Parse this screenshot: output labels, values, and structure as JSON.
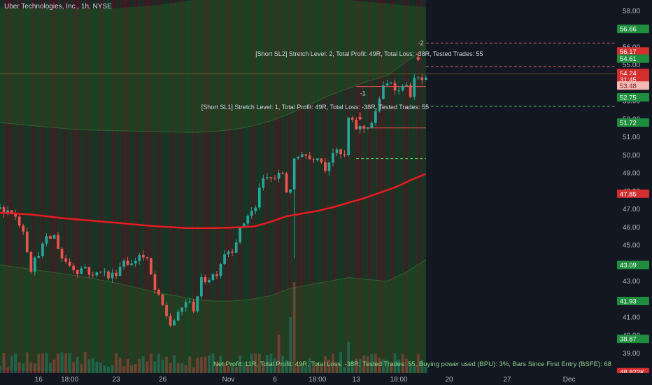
{
  "header": {
    "symbol_title": "Uber Technologies, Inc., 1h, NYSE"
  },
  "colors": {
    "background": "#131722",
    "candle_up": "#26a69a",
    "candle_down": "#ef5350",
    "band_fill": "#1f5a1f",
    "stripe_green": "#2e7d32",
    "stripe_red": "#c62828",
    "midline": "#e51c23",
    "label_green": "#1e8e3e",
    "label_red": "#d32f2f"
  },
  "chart_data": {
    "type": "candlestick",
    "symbol": "Uber Technologies, Inc.",
    "interval": "1h",
    "exchange": "NYSE",
    "y_ticks": [
      "58.00",
      "56.00",
      "55.00",
      "54.00",
      "53.00",
      "52.00",
      "51.00",
      "50.00",
      "49.00",
      "48.00",
      "47.00",
      "46.00",
      "45.00",
      "44.00",
      "43.00",
      "42.00",
      "41.00",
      "40.00",
      "39.00",
      "38.00"
    ],
    "ylim": [
      37.9,
      58.6
    ],
    "x_ticks": [
      {
        "label": "16",
        "x_bar": 10
      },
      {
        "label": "18:00",
        "x_bar": 18
      },
      {
        "label": "23",
        "x_bar": 30
      },
      {
        "label": "26",
        "x_bar": 42
      },
      {
        "label": "Nov",
        "x_bar": 59
      },
      {
        "label": "6",
        "x_bar": 71
      },
      {
        "label": "18:00",
        "x_bar": 82
      },
      {
        "label": "13",
        "x_bar": 92
      },
      {
        "label": "18:00",
        "x_bar": 103
      },
      {
        "label": "20",
        "x_bar": 116
      },
      {
        "label": "27",
        "x_bar": 131
      },
      {
        "label": "Dec",
        "x_bar": 147
      }
    ],
    "xlim_bars": [
      0,
      159
    ],
    "last_bar_index": 110,
    "price_path": [
      [
        0,
        47.0
      ],
      [
        3,
        46.9
      ],
      [
        6,
        45.9
      ],
      [
        8,
        43.7
      ],
      [
        10,
        44.6
      ],
      [
        12,
        45.3
      ],
      [
        14,
        45.5
      ],
      [
        16,
        44.3
      ],
      [
        18,
        43.9
      ],
      [
        20,
        43.6
      ],
      [
        22,
        43.8
      ],
      [
        24,
        43.2
      ],
      [
        26,
        43.7
      ],
      [
        28,
        43.2
      ],
      [
        30,
        43.5
      ],
      [
        32,
        44.2
      ],
      [
        34,
        43.9
      ],
      [
        36,
        44.5
      ],
      [
        38,
        44.1
      ],
      [
        40,
        42.5
      ],
      [
        42,
        41.6
      ],
      [
        44,
        40.6
      ],
      [
        46,
        41.1
      ],
      [
        48,
        41.9
      ],
      [
        50,
        41.5
      ],
      [
        52,
        43.0
      ],
      [
        54,
        43.2
      ],
      [
        56,
        43.5
      ],
      [
        58,
        44.6
      ],
      [
        60,
        44.8
      ],
      [
        62,
        45.8
      ],
      [
        64,
        46.7
      ],
      [
        66,
        47.0
      ],
      [
        67,
        48.3
      ],
      [
        69,
        48.7
      ],
      [
        71,
        48.7
      ],
      [
        73,
        49.0
      ],
      [
        74,
        48.0
      ],
      [
        75,
        48.2
      ],
      [
        76,
        49.6
      ],
      [
        78,
        50.2
      ],
      [
        80,
        49.8
      ],
      [
        82,
        50.0
      ],
      [
        84,
        49.3
      ],
      [
        86,
        50.2
      ],
      [
        88,
        50.0
      ],
      [
        89,
        49.9
      ],
      [
        90,
        52.0
      ],
      [
        92,
        51.5
      ],
      [
        94,
        51.5
      ],
      [
        96,
        51.8
      ],
      [
        97,
        52.3
      ],
      [
        98,
        53.2
      ],
      [
        99,
        53.7
      ],
      [
        101,
        54.1
      ],
      [
        103,
        53.5
      ],
      [
        104,
        54.0
      ],
      [
        106,
        53.4
      ],
      [
        107,
        54.1
      ],
      [
        108,
        54.2
      ],
      [
        110,
        54.1
      ]
    ],
    "big_drop_bar": {
      "index": 76,
      "high": 49.3,
      "low": 44.3
    },
    "trend_line": [
      [
        0,
        46.8
      ],
      [
        8,
        46.7
      ],
      [
        16,
        46.5
      ],
      [
        24,
        46.35
      ],
      [
        32,
        46.2
      ],
      [
        40,
        46.05
      ],
      [
        48,
        45.95
      ],
      [
        56,
        45.95
      ],
      [
        63,
        46.0
      ],
      [
        66,
        46.05
      ],
      [
        70,
        46.3
      ],
      [
        74,
        46.6
      ],
      [
        78,
        46.75
      ],
      [
        82,
        46.9
      ],
      [
        86,
        47.1
      ],
      [
        90,
        47.35
      ],
      [
        94,
        47.6
      ],
      [
        98,
        47.9
      ],
      [
        102,
        48.2
      ],
      [
        106,
        48.6
      ],
      [
        110,
        48.95
      ]
    ],
    "band_upper_outer": [
      [
        0,
        58.2
      ],
      [
        10,
        58.1
      ],
      [
        20,
        58.1
      ],
      [
        30,
        58.15
      ],
      [
        40,
        58.3
      ],
      [
        50,
        58.6
      ],
      [
        60,
        58.6
      ],
      [
        70,
        58.6
      ],
      [
        80,
        58.6
      ],
      [
        90,
        58.6
      ],
      [
        100,
        58.4
      ],
      [
        110,
        58.2
      ]
    ],
    "band_upper_inner": [
      [
        0,
        51.8
      ],
      [
        10,
        51.6
      ],
      [
        20,
        51.4
      ],
      [
        30,
        51.35
      ],
      [
        40,
        51.3
      ],
      [
        50,
        51.25
      ],
      [
        55,
        51.3
      ],
      [
        60,
        51.4
      ],
      [
        65,
        51.6
      ],
      [
        70,
        51.9
      ],
      [
        75,
        52.3
      ],
      [
        80,
        52.8
      ],
      [
        85,
        53.3
      ],
      [
        90,
        53.7
      ],
      [
        95,
        54.1
      ],
      [
        100,
        54.4
      ],
      [
        105,
        55.2
      ],
      [
        110,
        55.9
      ]
    ],
    "band_lower_inner": [
      [
        0,
        43.9
      ],
      [
        10,
        43.6
      ],
      [
        20,
        43.3
      ],
      [
        30,
        42.9
      ],
      [
        40,
        42.4
      ],
      [
        50,
        42.0
      ],
      [
        55,
        41.9
      ],
      [
        60,
        41.9
      ],
      [
        65,
        42.0
      ],
      [
        70,
        42.2
      ],
      [
        75,
        42.6
      ],
      [
        80,
        42.8
      ],
      [
        85,
        43.0
      ],
      [
        90,
        43.2
      ],
      [
        95,
        43.1
      ],
      [
        100,
        43.0
      ],
      [
        105,
        43.5
      ],
      [
        110,
        44.2
      ]
    ],
    "band_lower_outer": [
      [
        0,
        38.1
      ],
      [
        10,
        38.0
      ],
      [
        20,
        37.9
      ],
      [
        30,
        37.9
      ],
      [
        40,
        37.9
      ],
      [
        50,
        37.9
      ],
      [
        60,
        37.9
      ],
      [
        70,
        37.9
      ],
      [
        80,
        37.9
      ],
      [
        90,
        37.9
      ],
      [
        100,
        37.9
      ],
      [
        110,
        37.9
      ]
    ],
    "levels": [
      {
        "name": "sl2_upper",
        "y": 56.2,
        "x_from": 110,
        "x_to": 159,
        "style": "dashed",
        "color": "#e06666"
      },
      {
        "name": "sl2_entry",
        "y": 54.9,
        "x_from": 110,
        "x_to": 159,
        "style": "dashed",
        "color": "#e06666"
      },
      {
        "name": "sl2_solid",
        "y": 53.8,
        "x_from": 92,
        "x_to": 110,
        "style": "solid",
        "color": "#e05050"
      },
      {
        "name": "sl1_stop",
        "y": 52.7,
        "x_from": 110,
        "x_to": 159,
        "style": "dashed",
        "color": "#66bb66"
      },
      {
        "name": "sl1_solid",
        "y": 51.5,
        "x_from": 92,
        "x_to": 110,
        "style": "solid",
        "color": "#e05050"
      },
      {
        "name": "sl1_target",
        "y": 49.8,
        "x_from": 92,
        "x_to": 110,
        "style": "dashed",
        "color": "#66dd66"
      },
      {
        "name": "price_guide",
        "y": 54.5,
        "x_from": 0,
        "x_to": 159,
        "style": "solid",
        "color": "#7a5a2a"
      }
    ],
    "price_labels": [
      {
        "text": "58.00",
        "y": 58.0,
        "type": "tick"
      },
      {
        "text": "56.66",
        "y": 57.0,
        "type": "box",
        "color": "#1e8e3e"
      },
      {
        "text": "56.17",
        "y": 55.75,
        "type": "box",
        "color": "#d32f2f"
      },
      {
        "text": "54.61",
        "y": 55.35,
        "type": "box",
        "color": "#1e8e3e"
      },
      {
        "text": "54.24",
        "y": 54.55,
        "type": "box",
        "color": "#d32f2f"
      },
      {
        "text": "31:45",
        "y": 54.2,
        "type": "box",
        "color": "#d32f2f"
      },
      {
        "text": "53.48",
        "y": 53.85,
        "type": "box",
        "color": "#f4b9b2"
      },
      {
        "text": "52.75",
        "y": 53.2,
        "type": "box",
        "color": "#1e8e3e"
      },
      {
        "text": "51.72",
        "y": 51.8,
        "type": "box",
        "color": "#1e8e3e"
      },
      {
        "text": "47.85",
        "y": 47.85,
        "type": "box",
        "color": "#d32f2f"
      },
      {
        "text": "43.09",
        "y": 43.9,
        "type": "box",
        "color": "#1e8e3e"
      },
      {
        "text": "41.93",
        "y": 41.9,
        "type": "box",
        "color": "#1e8e3e"
      },
      {
        "text": "38.87",
        "y": 39.8,
        "type": "box",
        "color": "#1e8e3e"
      },
      {
        "text": "48.822K",
        "y": 37.95,
        "type": "box",
        "color": "#d32f2f"
      }
    ],
    "annotations": [
      {
        "text": "[Short SL2] Stretch Level: 2, Total Profit: 49R, Total Loss: -38R, Tested Trades: 55",
        "x_bar": 66,
        "y": 55.5
      },
      {
        "text": "[Short SL1] Stretch Level: 1, Total Profit: 49R, Total Loss: -38R, Tested Trades: 55",
        "x_bar": 52,
        "y": 52.55
      },
      {
        "text": "-1",
        "x_bar": 93,
        "y": 53.3
      },
      {
        "text": "-2",
        "x_bar": 108,
        "y": 56.1
      }
    ],
    "arrows": [
      {
        "x_bar": 93,
        "y": 51.9
      },
      {
        "x_bar": 108,
        "y": 55.2
      }
    ],
    "summary": "Net Profit: 11R, Total Profit: 49R, Total Loss: -38R, Tested Trades: 55, Buying power used (BPU): 3%, Bars Since First Entry (BSFE): 68",
    "stripes": "GRRGRGGRGRGRRGRGRRGRGGRGGRGRRGRGRRGRGGRGRGGRGRRGRGRRGRGGRGGRGRRGRGRRGRGGRGRGGRGRRGRGRRGRGGRGGRG",
    "volume_seed": 7
  }
}
